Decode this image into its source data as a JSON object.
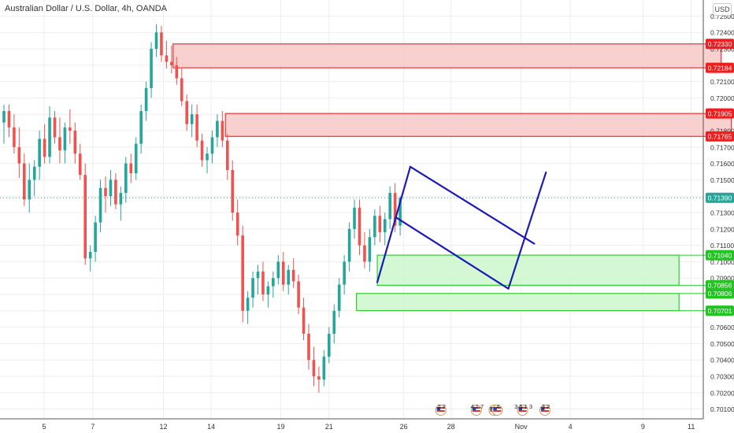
{
  "title": "Australian Dollar / U.S. Dollar, 4h, OANDA",
  "currency_badge": "USD",
  "colors": {
    "up": "#26a69a",
    "down": "#ef5350",
    "resistance_fill": "#f8c8c8",
    "resistance_border": "#f03030",
    "support_fill": "#ccf7cc",
    "support_border": "#33cc33",
    "pattern_line": "#1a1ab8",
    "grid": "#eeeeee",
    "last_price": "#26a69a"
  },
  "chart_data": {
    "type": "candlestick",
    "title": "Australian Dollar / U.S. Dollar, 4h, OANDA",
    "ylim": [
      0.7005,
      0.7255
    ],
    "y_ticks": [
      "0.72500",
      "0.72400",
      "0.72300",
      "0.72200",
      "0.72100",
      "0.72000",
      "0.71900",
      "0.71800",
      "0.71700",
      "0.71600",
      "0.71500",
      "0.71400",
      "0.71300",
      "0.71200",
      "0.71100",
      "0.71000",
      "0.70900",
      "0.70800",
      "0.70700",
      "0.70600",
      "0.70500",
      "0.70400",
      "0.70300",
      "0.70200",
      "0.70100"
    ],
    "x_ticks": [
      {
        "label": "5",
        "index": 7.9
      },
      {
        "label": "7",
        "index": 17.5
      },
      {
        "label": "12",
        "index": 31.4
      },
      {
        "label": "14",
        "index": 40.8
      },
      {
        "label": "19",
        "index": 54.5
      },
      {
        "label": "21",
        "index": 64
      },
      {
        "label": "26",
        "index": 78.7
      },
      {
        "label": "28",
        "index": 88
      },
      {
        "label": "Nov",
        "index": 101.8
      },
      {
        "label": "4",
        "index": 111.5
      },
      {
        "label": "9",
        "index": 125.8
      },
      {
        "label": "11",
        "index": 135.3
      }
    ],
    "candles": [
      [
        0.7185,
        0.7196,
        0.7172,
        0.7192
      ],
      [
        0.7192,
        0.7196,
        0.7176,
        0.7182
      ],
      [
        0.7182,
        0.719,
        0.7166,
        0.717
      ],
      [
        0.717,
        0.7182,
        0.7151,
        0.716
      ],
      [
        0.716,
        0.7166,
        0.7134,
        0.7138
      ],
      [
        0.7138,
        0.716,
        0.713,
        0.715
      ],
      [
        0.715,
        0.7162,
        0.714,
        0.7158
      ],
      [
        0.7158,
        0.718,
        0.715,
        0.7175
      ],
      [
        0.7175,
        0.7184,
        0.716,
        0.7164
      ],
      [
        0.7164,
        0.7195,
        0.716,
        0.7188
      ],
      [
        0.7188,
        0.7192,
        0.7172,
        0.7176
      ],
      [
        0.7176,
        0.7188,
        0.716,
        0.7168
      ],
      [
        0.7168,
        0.7185,
        0.716,
        0.7182
      ],
      [
        0.7182,
        0.7193,
        0.7172,
        0.718
      ],
      [
        0.718,
        0.7185,
        0.716,
        0.7166
      ],
      [
        0.7166,
        0.7172,
        0.715,
        0.7153
      ],
      [
        0.7153,
        0.716,
        0.7098,
        0.7102
      ],
      [
        0.7102,
        0.711,
        0.7094,
        0.7106
      ],
      [
        0.7106,
        0.7128,
        0.71,
        0.7124
      ],
      [
        0.7124,
        0.715,
        0.7118,
        0.7145
      ],
      [
        0.7145,
        0.7152,
        0.713,
        0.714
      ],
      [
        0.714,
        0.7156,
        0.7134,
        0.715
      ],
      [
        0.715,
        0.7154,
        0.7132,
        0.7135
      ],
      [
        0.7135,
        0.7146,
        0.7125,
        0.7142
      ],
      [
        0.7142,
        0.7164,
        0.7136,
        0.716
      ],
      [
        0.716,
        0.7166,
        0.7148,
        0.7154
      ],
      [
        0.7154,
        0.7176,
        0.715,
        0.7172
      ],
      [
        0.7172,
        0.7196,
        0.7166,
        0.7192
      ],
      [
        0.7192,
        0.721,
        0.7186,
        0.7206
      ],
      [
        0.7206,
        0.7234,
        0.72,
        0.723
      ],
      [
        0.723,
        0.7245,
        0.7225,
        0.724
      ],
      [
        0.724,
        0.7244,
        0.7222,
        0.7226
      ],
      [
        0.7226,
        0.7235,
        0.7218,
        0.7222
      ],
      [
        0.7222,
        0.7232,
        0.7215,
        0.722
      ],
      [
        0.722,
        0.7225,
        0.7208,
        0.7212
      ],
      [
        0.7212,
        0.7218,
        0.7195,
        0.7198
      ],
      [
        0.7198,
        0.7202,
        0.718,
        0.7184
      ],
      [
        0.7184,
        0.7196,
        0.7176,
        0.719
      ],
      [
        0.719,
        0.7196,
        0.717,
        0.7174
      ],
      [
        0.7174,
        0.7178,
        0.7158,
        0.7162
      ],
      [
        0.7162,
        0.717,
        0.7154,
        0.7166
      ],
      [
        0.7166,
        0.718,
        0.716,
        0.7176
      ],
      [
        0.7176,
        0.719,
        0.717,
        0.7186
      ],
      [
        0.7186,
        0.7192,
        0.717,
        0.7174
      ],
      [
        0.7174,
        0.7178,
        0.715,
        0.7156
      ],
      [
        0.7156,
        0.7162,
        0.7125,
        0.713
      ],
      [
        0.713,
        0.7138,
        0.711,
        0.7116
      ],
      [
        0.7116,
        0.7122,
        0.7063,
        0.707
      ],
      [
        0.707,
        0.7082,
        0.7062,
        0.7078
      ],
      [
        0.7078,
        0.7094,
        0.7072,
        0.709
      ],
      [
        0.709,
        0.7098,
        0.708,
        0.7094
      ],
      [
        0.7094,
        0.71,
        0.7076,
        0.708
      ],
      [
        0.708,
        0.7088,
        0.7072,
        0.7085
      ],
      [
        0.7085,
        0.7094,
        0.7078,
        0.709
      ],
      [
        0.709,
        0.7104,
        0.7086,
        0.71
      ],
      [
        0.71,
        0.7106,
        0.7082,
        0.7086
      ],
      [
        0.7086,
        0.7098,
        0.708,
        0.7095
      ],
      [
        0.7095,
        0.7102,
        0.7084,
        0.7088
      ],
      [
        0.7088,
        0.7092,
        0.7068,
        0.7072
      ],
      [
        0.7072,
        0.7078,
        0.7052,
        0.7056
      ],
      [
        0.7056,
        0.7062,
        0.7034,
        0.704
      ],
      [
        0.704,
        0.7048,
        0.7024,
        0.703
      ],
      [
        0.703,
        0.7036,
        0.702,
        0.7028
      ],
      [
        0.7028,
        0.7046,
        0.7024,
        0.7042
      ],
      [
        0.7042,
        0.706,
        0.7038,
        0.7056
      ],
      [
        0.7056,
        0.7074,
        0.705,
        0.707
      ],
      [
        0.707,
        0.709,
        0.7066,
        0.7086
      ],
      [
        0.7086,
        0.7104,
        0.708,
        0.71
      ],
      [
        0.71,
        0.7124,
        0.7094,
        0.712
      ],
      [
        0.712,
        0.7138,
        0.7114,
        0.7133
      ],
      [
        0.7133,
        0.7138,
        0.7104,
        0.711
      ],
      [
        0.711,
        0.7118,
        0.7096,
        0.71
      ],
      [
        0.71,
        0.712,
        0.7094,
        0.7115
      ],
      [
        0.7115,
        0.7132,
        0.711,
        0.7128
      ],
      [
        0.7128,
        0.7134,
        0.7112,
        0.7118
      ],
      [
        0.7118,
        0.713,
        0.711,
        0.7126
      ],
      [
        0.7126,
        0.7146,
        0.712,
        0.7142
      ],
      [
        0.7142,
        0.7148,
        0.7118,
        0.7122
      ],
      [
        0.7122,
        0.714,
        0.7116,
        0.7139
      ]
    ],
    "last_price": "0.71390",
    "zones": [
      {
        "kind": "resistance",
        "top": 0.7233,
        "bottom": 0.72184,
        "top_label": "0.72330",
        "bottom_label": "0.72184",
        "x_start_index": 33.3,
        "x_end_index": 141.2
      },
      {
        "kind": "resistance",
        "top": 0.71905,
        "bottom": 0.71765,
        "top_label": "0.71905",
        "bottom_label": "0.71765",
        "x_start_index": 43.6,
        "x_end_index": 143.2
      },
      {
        "kind": "support",
        "top": 0.7104,
        "bottom": 0.70856,
        "top_label": "0.71040",
        "bottom_label": "0.70856",
        "x_start_index": 73.5,
        "x_end_index": 132.9
      },
      {
        "kind": "support",
        "top": 0.70806,
        "bottom": 0.70701,
        "top_label": "0.70806",
        "bottom_label": "0.70701",
        "x_start_index": 69.4,
        "x_end_index": 132.9
      }
    ],
    "pattern_lines": [
      {
        "from": [
          73.5,
          0.70875
        ],
        "to": [
          80.0,
          0.7158
        ]
      },
      {
        "from": [
          80.0,
          0.7158
        ],
        "to": [
          104.4,
          0.7111
        ]
      },
      {
        "from": [
          77.2,
          0.7127
        ],
        "to": [
          99.3,
          0.70835
        ]
      },
      {
        "from": [
          99.3,
          0.70835
        ],
        "to": [
          106.7,
          0.71545
        ]
      }
    ],
    "event_markers": [
      {
        "index": 86.0,
        "label": "2 2"
      },
      {
        "index": 93.0,
        "label": "4 1 7"
      },
      {
        "index": 96.5,
        "label": ""
      },
      {
        "index": 97.1,
        "label": "4"
      },
      {
        "index": 102.1,
        "label": "3 5 1 3"
      },
      {
        "index": 106.5,
        "label": "3 2"
      }
    ]
  }
}
